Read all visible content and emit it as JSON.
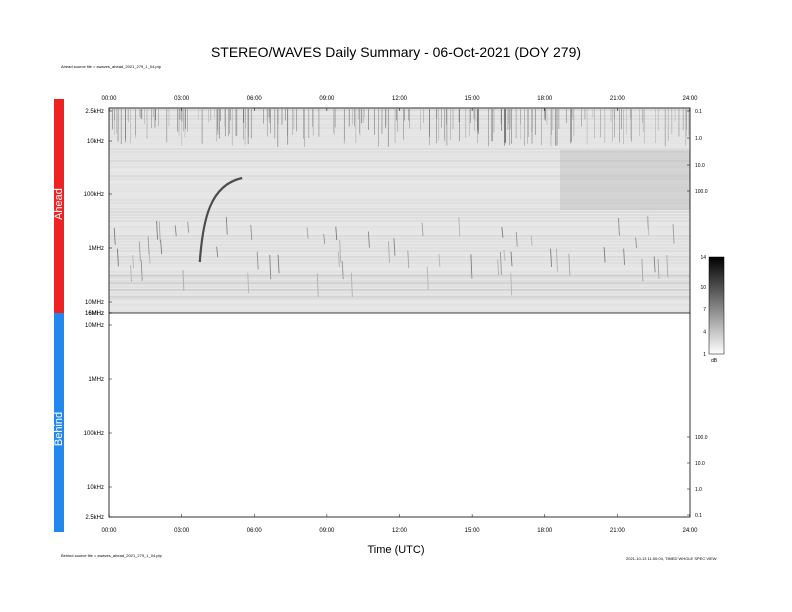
{
  "title": "STEREO/WAVES Daily Summary - 06-Oct-2021 (DOY 279)",
  "ahead_source": "Ahead source file = swaves_ahead_2021_279_1_04.ptp",
  "behind_source": "Behind source file = swaves_ahead_2021_279_1_04.ptp",
  "footer_right": "2021-10-13 11:00:04, TIMED WHOLE SPEC VIEW",
  "colors": {
    "ahead_bar": "#ee2222",
    "behind_bar": "#2288ee"
  },
  "chart_data": [
    {
      "type": "heatmap",
      "panel": "Ahead",
      "x": [
        "00:00",
        "03:00",
        "06:00",
        "09:00",
        "12:00",
        "15:00",
        "18:00",
        "21:00",
        "24:00"
      ],
      "xlabel": "Time (UTC)",
      "y_ticks_left": [
        "2.5kHz",
        "10kHz",
        "100kHz",
        "1MHz",
        "10MHz",
        "16MHz"
      ],
      "y_ticks_right": [
        "0.1",
        "1.0",
        "10.0",
        "100.0"
      ],
      "scale": "log",
      "features": [
        {
          "kind": "type-III burst",
          "start": "03:45",
          "end": "05:30",
          "note": "drifting from ~1MHz to ~100kHz"
        }
      ]
    },
    {
      "type": "heatmap",
      "panel": "Behind",
      "x": [
        "00:00",
        "03:00",
        "06:00",
        "09:00",
        "12:00",
        "15:00",
        "18:00",
        "21:00",
        "24:00"
      ],
      "xlabel": "Time (UTC)",
      "y_ticks_left": [
        "16MHz",
        "10MHz",
        "1MHz",
        "100kHz",
        "10kHz",
        "2.5kHz"
      ],
      "y_ticks_right": [
        "100.0",
        "10.0",
        "1.0",
        "0.1"
      ],
      "scale": "log",
      "empty": true
    },
    {
      "type": "colorbar",
      "ticks": [
        "14",
        "10",
        "7",
        "4",
        "1"
      ],
      "unit": "dB",
      "range": [
        1,
        14
      ]
    }
  ],
  "panels": {
    "ahead": {
      "label": "Ahead"
    },
    "behind": {
      "label": "Behind"
    }
  }
}
